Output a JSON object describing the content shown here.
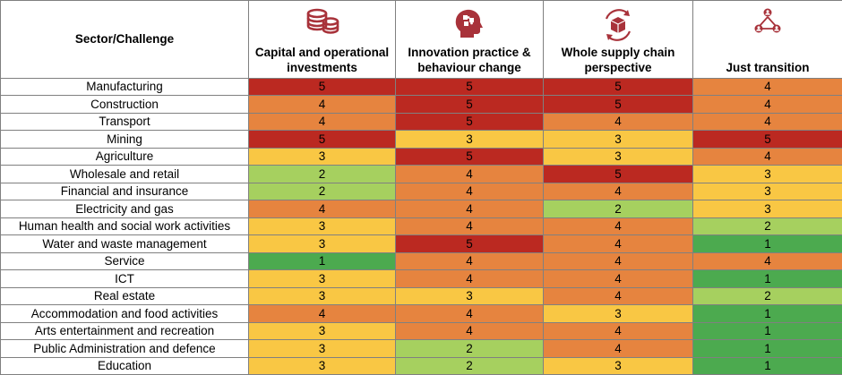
{
  "header": {
    "corner_label": "Sector/Challenge",
    "columns": [
      {
        "label": "Capital and operational investments",
        "icon": "coins-icon"
      },
      {
        "label": "Innovation practice & behaviour change",
        "icon": "head-puzzle-icon"
      },
      {
        "label": "Whole supply chain perspective",
        "icon": "box-cycle-icon"
      },
      {
        "label": "Just transition",
        "icon": "people-network-icon"
      }
    ]
  },
  "colors": {
    "1": "#4caa4f",
    "2": "#a6d05f",
    "3": "#f9c744",
    "4": "#e6843f",
    "5": "#bb2921",
    "icon": "#a8323a"
  },
  "rows": [
    {
      "sector": "Manufacturing",
      "values": [
        5,
        5,
        5,
        4
      ]
    },
    {
      "sector": "Construction",
      "values": [
        4,
        5,
        5,
        4
      ]
    },
    {
      "sector": "Transport",
      "values": [
        4,
        5,
        4,
        4
      ]
    },
    {
      "sector": "Mining",
      "values": [
        5,
        3,
        3,
        5
      ]
    },
    {
      "sector": "Agriculture",
      "values": [
        3,
        5,
        3,
        4
      ]
    },
    {
      "sector": "Wholesale and retail",
      "values": [
        2,
        4,
        5,
        3
      ]
    },
    {
      "sector": "Financial and insurance",
      "values": [
        2,
        4,
        4,
        3
      ]
    },
    {
      "sector": "Electricity and gas",
      "values": [
        4,
        4,
        2,
        3
      ]
    },
    {
      "sector": "Human health and social work activities",
      "values": [
        3,
        4,
        4,
        2
      ]
    },
    {
      "sector": "Water and waste management",
      "values": [
        3,
        5,
        4,
        1
      ]
    },
    {
      "sector": "Service",
      "values": [
        1,
        4,
        4,
        4
      ]
    },
    {
      "sector": "ICT",
      "values": [
        3,
        4,
        4,
        1
      ]
    },
    {
      "sector": "Real estate",
      "values": [
        3,
        3,
        4,
        2
      ]
    },
    {
      "sector": "Accommodation and food activities",
      "values": [
        4,
        4,
        3,
        1
      ]
    },
    {
      "sector": "Arts entertainment and recreation",
      "values": [
        3,
        4,
        4,
        1
      ]
    },
    {
      "sector": "Public Administration and defence",
      "values": [
        3,
        2,
        4,
        1
      ]
    },
    {
      "sector": "Education",
      "values": [
        3,
        2,
        3,
        1
      ]
    }
  ]
}
